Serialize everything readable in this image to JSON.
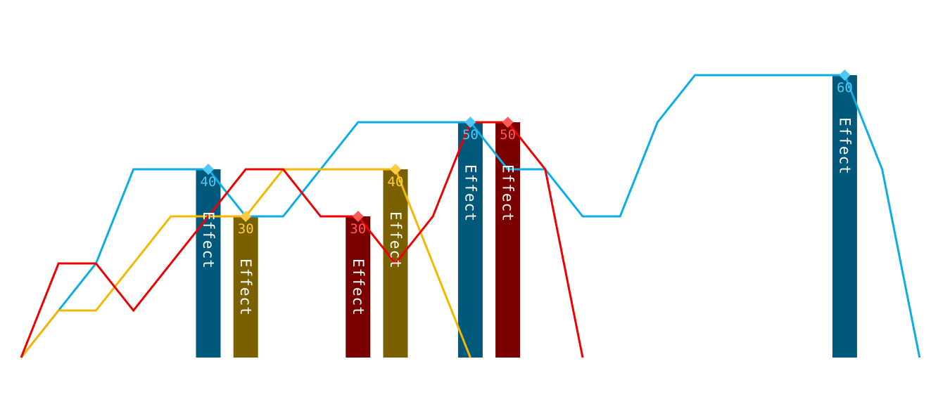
{
  "chart_data": {
    "type": "line",
    "title": "",
    "xlabel": "",
    "ylabel": "",
    "x": [
      0,
      1,
      2,
      3,
      4,
      5,
      6,
      7,
      8,
      9,
      10,
      11,
      12,
      13,
      14,
      15,
      16,
      17,
      18,
      19,
      20,
      21,
      22,
      23,
      24
    ],
    "ylim": [
      0,
      70
    ],
    "series": [
      {
        "color": "#0aaee6",
        "marker_color": "#4fc8f4",
        "bar_color": "#00587a",
        "values": [
          0,
          10,
          20,
          40,
          40,
          40,
          30,
          30,
          40,
          50,
          50,
          50,
          50,
          40,
          40,
          30,
          30,
          50,
          60,
          60,
          60,
          60,
          60,
          40,
          0
        ]
      },
      {
        "color": "#f5b800",
        "marker_color": "#fccb3f",
        "bar_color": "#7a6000",
        "values": [
          0,
          10,
          10,
          20,
          30,
          30,
          30,
          40,
          40,
          40,
          40,
          20,
          0,
          null,
          null,
          null,
          null,
          null,
          null,
          null,
          null,
          null,
          null,
          null,
          null
        ]
      },
      {
        "color": "#ee0000",
        "marker_color": "#ff5a5a",
        "bar_color": "#7a0000",
        "values": [
          0,
          20,
          20,
          10,
          20,
          30,
          40,
          40,
          30,
          30,
          20,
          30,
          50,
          50,
          40,
          0,
          null,
          null,
          null,
          null,
          null,
          null,
          null,
          null,
          null
        ]
      }
    ],
    "effects": [
      {
        "series": 0,
        "x": 5,
        "value": 40,
        "label": "Effect",
        "value_label": "40"
      },
      {
        "series": 1,
        "x": 6,
        "value": 30,
        "label": "Effect",
        "value_label": "30"
      },
      {
        "series": 2,
        "x": 9,
        "value": 30,
        "label": "Effect",
        "value_label": "30"
      },
      {
        "series": 1,
        "x": 10,
        "value": 40,
        "label": "Effect",
        "value_label": "40"
      },
      {
        "series": 0,
        "x": 12,
        "value": 50,
        "label": "Effect",
        "value_label": "50"
      },
      {
        "series": 2,
        "x": 13,
        "value": 50,
        "label": "Effect",
        "value_label": "50"
      },
      {
        "series": 0,
        "x": 22,
        "value": 60,
        "label": "Effect",
        "value_label": "60"
      }
    ]
  }
}
